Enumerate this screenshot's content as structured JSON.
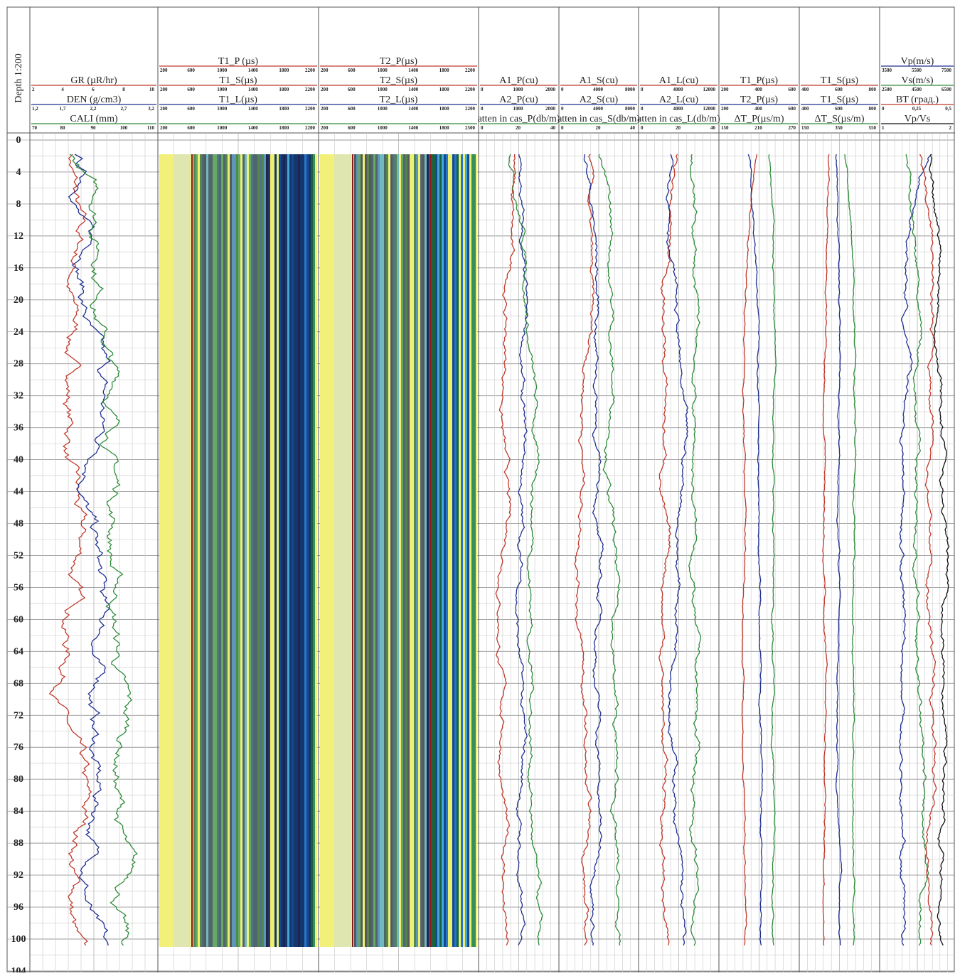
{
  "depth_title": "Depth 1:200",
  "depth_ticks": [
    0,
    4,
    8,
    12,
    16,
    20,
    24,
    28,
    32,
    36,
    40,
    44,
    48,
    52,
    56,
    60,
    64,
    68,
    72,
    76,
    80,
    84,
    88,
    92,
    96,
    100,
    104
  ],
  "tracks": [
    {
      "curves": [
        {
          "name": "GR (µR/hr)",
          "color": "#c0392b",
          "scale": [
            "2",
            "4",
            "6",
            "8",
            "10"
          ]
        },
        {
          "name": "DEN (g/cm3)",
          "color": "#1f2f8f",
          "scale": [
            "1,2",
            "1,7",
            "2,2",
            "2,7",
            "3,2"
          ]
        },
        {
          "name": "CALI (mm)",
          "color": "#2e8b3a",
          "scale": [
            "70",
            "80",
            "90",
            "100",
            "110"
          ]
        }
      ]
    },
    {
      "curves": [
        {
          "name": "T1_P (µs)",
          "color": "#c0392b",
          "scale": [
            "200",
            "600",
            "1000",
            "1400",
            "1800",
            "2200"
          ]
        },
        {
          "name": "T1_S(µs)",
          "color": "#c0392b",
          "scale": [
            "200",
            "600",
            "1000",
            "1400",
            "1800",
            "2200"
          ]
        },
        {
          "name": "T1_L(µs)",
          "color": "#1f2f8f",
          "scale": [
            "200",
            "600",
            "1000",
            "1400",
            "1800",
            "2200"
          ]
        },
        {
          "color": "#2e8b3a",
          "scale": [
            "200",
            "600",
            "1000",
            "1400",
            "1800",
            "2200"
          ]
        }
      ]
    },
    {
      "curves": [
        {
          "name": "T2_P(µs)",
          "color": "#c0392b",
          "scale": [
            "200",
            "600",
            "1000",
            "1400",
            "1800",
            "2200"
          ]
        },
        {
          "name": "T2_S(µs)",
          "color": "#c0392b",
          "scale": [
            "200",
            "600",
            "1000",
            "1400",
            "1800",
            "2200"
          ]
        },
        {
          "name": "T2_L(µs)",
          "color": "#1f2f8f",
          "scale": [
            "200",
            "600",
            "1000",
            "1400",
            "1800",
            "2200"
          ]
        },
        {
          "color": "#2e8b3a",
          "scale": [
            "200",
            "600",
            "1000",
            "1400",
            "1800",
            "2500"
          ]
        }
      ]
    },
    {
      "curves": [
        {
          "name": "A1_P(cu)",
          "color": "#c0392b",
          "scale": [
            "0",
            "1000",
            "2000"
          ]
        },
        {
          "name": "A2_P(cu)",
          "color": "#1f2f8f",
          "scale": [
            "0",
            "1000",
            "2000"
          ]
        },
        {
          "name": "atten in cas_P(db/m)",
          "color": "#2e8b3a",
          "scale": [
            "0",
            "20",
            "40"
          ]
        }
      ]
    },
    {
      "curves": [
        {
          "name": "A1_S(cu)",
          "color": "#c0392b",
          "scale": [
            "0",
            "4000",
            "8000"
          ]
        },
        {
          "name": "A2_S(cu)",
          "color": "#1f2f8f",
          "scale": [
            "0",
            "4000",
            "8000"
          ]
        },
        {
          "name": "atten in cas_S(db/m)",
          "color": "#2e8b3a",
          "scale": [
            "0",
            "20",
            "40"
          ]
        }
      ]
    },
    {
      "curves": [
        {
          "name": "A1_L(cu)",
          "color": "#c0392b",
          "scale": [
            "0",
            "4000",
            "12000"
          ]
        },
        {
          "name": "A2_L(cu)",
          "color": "#1f2f8f",
          "scale": [
            "0",
            "4000",
            "12000"
          ]
        },
        {
          "name": "atten in cas_L(db/m)",
          "color": "#2e8b3a",
          "scale": [
            "0",
            "20",
            "40"
          ]
        }
      ]
    },
    {
      "curves": [
        {
          "name": "T1_P(µs)",
          "color": "#c0392b",
          "scale": [
            "200",
            "400",
            "600"
          ]
        },
        {
          "name": "T2_P(µs)",
          "color": "#1f2f8f",
          "scale": [
            "200",
            "400",
            "600"
          ]
        },
        {
          "name": "ΔT_P(µs/m)",
          "color": "#2e8b3a",
          "scale": [
            "150",
            "210",
            "270"
          ]
        }
      ]
    },
    {
      "curves": [
        {
          "name": "T1_S(µs)",
          "color": "#c0392b",
          "scale": [
            "400",
            "600",
            "800"
          ]
        },
        {
          "name": "T1_S(µs)",
          "color": "#1f2f8f",
          "scale": [
            "400",
            "600",
            "800"
          ]
        },
        {
          "name": "ΔT_S(µs/m)",
          "color": "#2e8b3a",
          "scale": [
            "150",
            "350",
            "550"
          ]
        }
      ]
    },
    {
      "curves": [
        {
          "name": "Vp(m/s)",
          "color": "#1f2f8f",
          "scale": [
            "3500",
            "5500",
            "7500"
          ]
        },
        {
          "name": "Vs(m/s)",
          "color": "#2e8b3a",
          "scale": [
            "2500",
            "4500",
            "6500"
          ]
        },
        {
          "name": "BT (град.)",
          "color": "#c0392b",
          "scale": [
            "0",
            "0,25",
            "0,5"
          ]
        },
        {
          "name": "Vp/Vs",
          "color": "#111111",
          "scale": [
            "1",
            "2"
          ]
        }
      ]
    }
  ]
}
